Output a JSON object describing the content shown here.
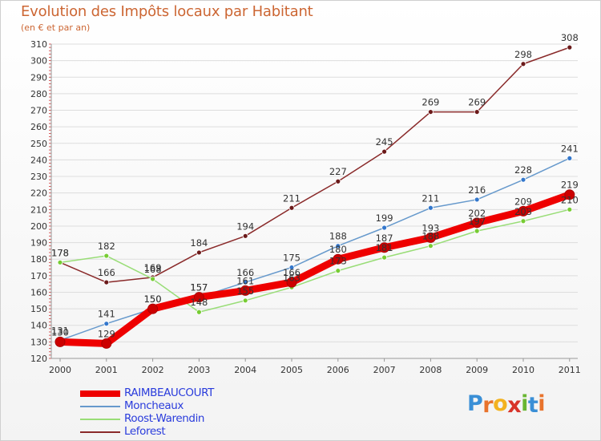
{
  "chart_data": {
    "type": "line",
    "title": "Evolution des Impôts locaux par Habitant",
    "subtitle": "(en € et par an)",
    "xlabel": "",
    "ylabel": "",
    "ylim": [
      120,
      310
    ],
    "y_ticks": [
      120,
      130,
      140,
      150,
      160,
      170,
      180,
      190,
      200,
      210,
      220,
      230,
      240,
      250,
      260,
      270,
      280,
      290,
      300,
      310
    ],
    "grid": true,
    "legend_position": "bottom-left",
    "x": [
      "2000",
      "2001",
      "2002",
      "2003",
      "2004",
      "2005",
      "2006",
      "2007",
      "2008",
      "2009",
      "2010",
      "2011"
    ],
    "series": [
      {
        "name": "RAIMBEAUCOURT",
        "color": "#ee0000",
        "marker_color": "#cc0000",
        "values": [
          130,
          129,
          150,
          157,
          161,
          166,
          180,
          187,
          193,
          202,
          209,
          219
        ]
      },
      {
        "name": "Moncheaux",
        "color": "#6699cc",
        "marker_color": "#3377cc",
        "values": [
          131,
          141,
          150,
          157,
          166,
          175,
          188,
          199,
          211,
          216,
          228,
          241
        ]
      },
      {
        "name": "Roost-Warendin",
        "color": "#99dd77",
        "marker_color": "#77cc33",
        "values": [
          178,
          182,
          168,
          148,
          155,
          163,
          173,
          181,
          188,
          197,
          203,
          210
        ]
      },
      {
        "name": "Leforest",
        "color": "#8a2a2a",
        "marker_color": "#6b1a1a",
        "values": [
          178,
          166,
          169,
          184,
          194,
          211,
          227,
          245,
          269,
          269,
          298,
          308
        ]
      }
    ]
  },
  "branding": {
    "letters": [
      "P",
      "r",
      "o",
      "x",
      "i",
      "t",
      "i"
    ],
    "colors": [
      "#3a8fd6",
      "#e8732c",
      "#f3b21f",
      "#d8342a",
      "#69b632",
      "#3a8fd6",
      "#e8732c"
    ]
  }
}
